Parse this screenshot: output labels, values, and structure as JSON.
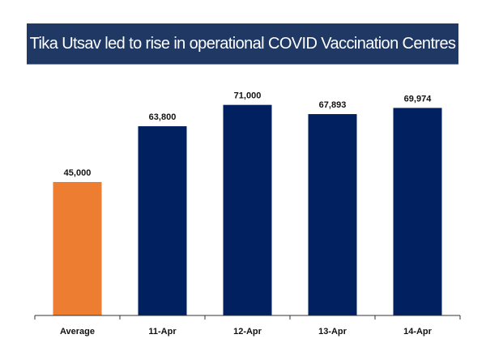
{
  "chart_data": {
    "type": "bar",
    "title": "Tika Utsav led to rise in operational COVID Vaccination Centres",
    "categories": [
      "Average",
      "11-Apr",
      "12-Apr",
      "13-Apr",
      "14-Apr"
    ],
    "values": [
      45000,
      63800,
      71000,
      67893,
      69974
    ],
    "data_labels": [
      "45,000",
      "63,800",
      "71,000",
      "67,893",
      "69,974"
    ],
    "colors": [
      "#ed7d31",
      "#002060",
      "#002060",
      "#002060",
      "#002060"
    ],
    "title_background": "#1f3864",
    "xlabel": "",
    "ylabel": "",
    "ylim": [
      0,
      75000
    ],
    "grid": false,
    "legend": "none"
  }
}
